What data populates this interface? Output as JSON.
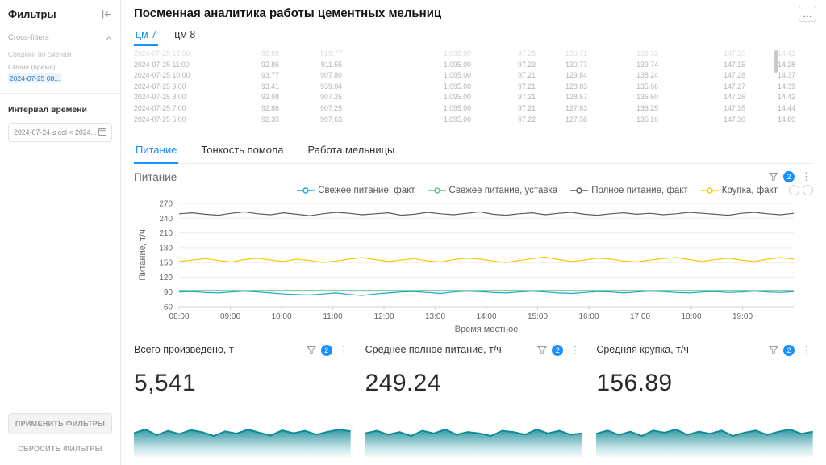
{
  "colors": {
    "accent": "#1890ff",
    "spark": "#0F8A96"
  },
  "header": {
    "title": "Посменная аналитика работы цементных мельниц",
    "more_button": "…"
  },
  "sidebar": {
    "title": "Фильтры",
    "cross_filters": {
      "label": "Cross-filters",
      "scope_label": "Средний по сменам",
      "filter_name": "Смена (время)",
      "filter_value": "2024-07-25 08..."
    },
    "time_range": {
      "label": "Интервал времени",
      "value": "2024-07-24 ≤ col < 2024..."
    },
    "apply_button": "ПРИМЕНИТЬ ФИЛЬТРЫ",
    "clear_button": "СБРОСИТЬ ФИЛЬТРЫ"
  },
  "mill_tabs": [
    {
      "label": "цм 7",
      "active": true
    },
    {
      "label": "цм 8",
      "active": false
    }
  ],
  "table": {
    "rows": [
      [
        "2024-07-25 12:00",
        "88.68",
        "919.77",
        "1,095.00",
        "97.25",
        "130.71",
        "136.32",
        "147.20",
        "14.43"
      ],
      [
        "2024-07-25 11:00",
        "92.86",
        "911.55",
        "1,095.00",
        "97.23",
        "130.77",
        "139.74",
        "147.15",
        "14.28"
      ],
      [
        "2024-07-25 10:00",
        "93.77",
        "907.80",
        "1,095.00",
        "97.21",
        "129.84",
        "138.24",
        "147.28",
        "14.37"
      ],
      [
        "2024-07-25 9:00",
        "93.41",
        "939.04",
        "1,095.00",
        "97.21",
        "128.83",
        "135.66",
        "147.27",
        "14.39"
      ],
      [
        "2024-07-25 8:00",
        "92.98",
        "907.25",
        "1,095.00",
        "97.21",
        "128.57",
        "135.60",
        "147.26",
        "14.42"
      ],
      [
        "2024-07-25 7:00",
        "92.86",
        "907.25",
        "1,095.00",
        "97.21",
        "127.63",
        "136.25",
        "147.35",
        "14.44"
      ],
      [
        "2024-07-25 6:00",
        "92.35",
        "907.63",
        "1,095.00",
        "97.22",
        "127.58",
        "135.16",
        "147.30",
        "14.80"
      ]
    ]
  },
  "section_tabs": [
    {
      "label": "Питание",
      "active": true
    },
    {
      "label": "Тонкость помола",
      "active": false
    },
    {
      "label": "Работа мельницы",
      "active": false
    }
  ],
  "chart_panel": {
    "title": "Питание",
    "filter_badge": "2"
  },
  "chart_data": {
    "type": "line",
    "title": "Питание",
    "xlabel": "Время местное",
    "ylabel": "Питание, т/ч",
    "ylim": [
      60,
      270
    ],
    "ytick_step": 30,
    "x_range_hours": [
      8,
      20
    ],
    "x_ticks": [
      "08:00",
      "09:00",
      "10:00",
      "11:00",
      "12:00",
      "13:00",
      "14:00",
      "15:00",
      "16:00",
      "17:00",
      "18:00",
      "19:00"
    ],
    "grid": true,
    "legend_position": "top-right",
    "series": [
      {
        "name": "Свежее питание, факт",
        "color": "#1FA8C9",
        "values": [
          90,
          91,
          89,
          88,
          90,
          92,
          90,
          88,
          86,
          85,
          84,
          86,
          88,
          85,
          83,
          86,
          88,
          90,
          91,
          89,
          87,
          90,
          92,
          91,
          89,
          88,
          90,
          92,
          90,
          88,
          87,
          89,
          91,
          90,
          88,
          90,
          92,
          91,
          89,
          88,
          90,
          91,
          89,
          90,
          92,
          90,
          89,
          91
        ]
      },
      {
        "name": "Свежее питание, уставка",
        "color": "#5AC189",
        "values": [
          93,
          93,
          93,
          93,
          93,
          93,
          93,
          93,
          93,
          93,
          93,
          93,
          93,
          93,
          93,
          93,
          93,
          93,
          93,
          93,
          93,
          93,
          93,
          93,
          93,
          93,
          93,
          93,
          93,
          93,
          93,
          93,
          93,
          93,
          93,
          93,
          93,
          93,
          93,
          93,
          93,
          93,
          93,
          93,
          93,
          93,
          93,
          93
        ]
      },
      {
        "name": "Полное питание, факт",
        "color": "#5c5c5c",
        "values": [
          249,
          251,
          248,
          246,
          250,
          253,
          249,
          247,
          251,
          248,
          245,
          249,
          252,
          250,
          247,
          249,
          251,
          246,
          248,
          252,
          249,
          247,
          250,
          253,
          248,
          246,
          249,
          251,
          247,
          250,
          252,
          248,
          246,
          249,
          251,
          248,
          250,
          247,
          249,
          252,
          250,
          248,
          246,
          250,
          252,
          249,
          247,
          250
        ]
      },
      {
        "name": "Крупка, факт",
        "color": "#FCC700",
        "values": [
          152,
          155,
          158,
          154,
          151,
          156,
          159,
          155,
          152,
          157,
          154,
          150,
          153,
          157,
          160,
          156,
          152,
          155,
          158,
          153,
          151,
          156,
          159,
          157,
          153,
          150,
          154,
          158,
          161,
          156,
          152,
          155,
          159,
          157,
          153,
          151,
          155,
          158,
          160,
          156,
          152,
          156,
          159,
          155,
          152,
          157,
          160,
          157
        ]
      }
    ]
  },
  "cards": [
    {
      "title": "Всего произведено, т",
      "value": "5,541",
      "filter_badge": "2",
      "color": "#0F8A96",
      "spark": [
        5520,
        5560,
        5500,
        5545,
        5510,
        5555,
        5530,
        5490,
        5540,
        5515,
        5560,
        5525,
        5495,
        5550,
        5520,
        5545,
        5505,
        5535,
        5560,
        5541
      ]
    },
    {
      "title": "Среднее полное питание, т/ч",
      "value": "249.24",
      "filter_badge": "2",
      "color": "#0F8A96",
      "spark": [
        249,
        251,
        248,
        250,
        247,
        251,
        249,
        252,
        248,
        250,
        249,
        247,
        251,
        250,
        248,
        252,
        249,
        251,
        248,
        249
      ]
    },
    {
      "title": "Средняя крупка, т/ч",
      "value": "156.89",
      "filter_badge": "2",
      "color": "#0F8A96",
      "spark": [
        155,
        158,
        154,
        157,
        153,
        158,
        156,
        159,
        154,
        157,
        155,
        158,
        153,
        156,
        158,
        154,
        157,
        159,
        155,
        157
      ]
    }
  ]
}
